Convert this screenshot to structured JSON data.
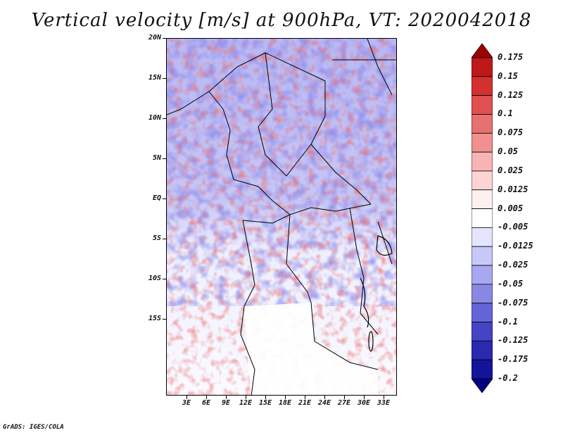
{
  "title": "Vertical velocity [m/s] at 900hPa, VT: 2020042018",
  "credit": "GrADS: IGES/COLA",
  "map": {
    "lat_labels": [
      "20N",
      "15N",
      "10N",
      "5N",
      "EQ",
      "5S",
      "10S",
      "15S"
    ],
    "lon_labels": [
      "3E",
      "6E",
      "9E",
      "12E",
      "15E",
      "18E",
      "21E",
      "24E",
      "27E",
      "30E",
      "33E"
    ]
  },
  "colorbar": {
    "levels": [
      "0.175",
      "0.15",
      "0.125",
      "0.1",
      "0.075",
      "0.05",
      "0.025",
      "0.0125",
      "0.005",
      "-0.005",
      "-0.0125",
      "-0.025",
      "-0.05",
      "-0.075",
      "-0.1",
      "-0.125",
      "-0.175",
      "-0.2"
    ],
    "colors": [
      "#a00000",
      "#be1818",
      "#d43030",
      "#e05050",
      "#e87070",
      "#f09090",
      "#f8b4b4",
      "#fcd4d4",
      "#fff0f0",
      "#ffffff",
      "#e4e4ff",
      "#c8c8f8",
      "#a8a8f0",
      "#8888e4",
      "#6464d8",
      "#4444c4",
      "#2a2ab0",
      "#14149a",
      "#000080"
    ]
  }
}
